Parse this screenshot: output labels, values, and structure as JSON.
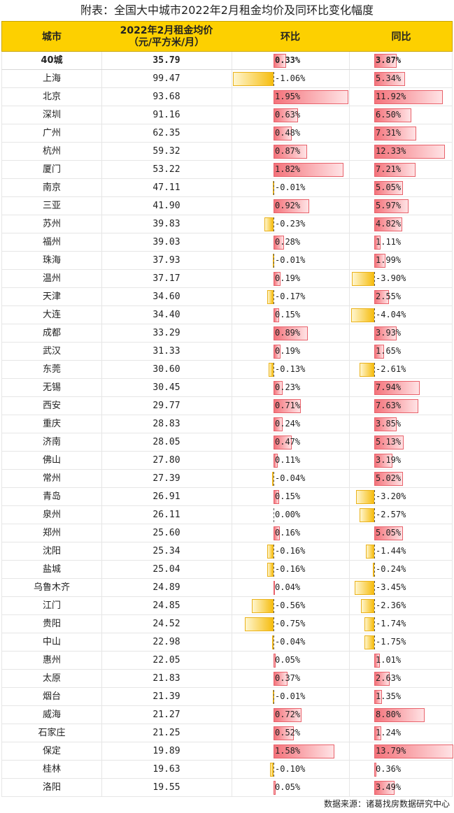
{
  "title": "附表：全国大中城市2022年2月租金均价及同环比变化幅度",
  "headers": {
    "city": "城市",
    "rent_line1": "2022年2月租金均价",
    "rent_line2": "（元/平方米/月）",
    "mom": "环比",
    "yoy": "同比"
  },
  "source": "数据来源：诸葛找房数据研究中心",
  "colors": {
    "header_bg": "#fdd000",
    "positive_bar": "#f4737b",
    "negative_bar": "#f6bd10"
  },
  "chart_data": {
    "type": "table",
    "columns": [
      "城市",
      "2022年2月租金均价（元/平方米/月）",
      "环比",
      "同比"
    ],
    "rows": [
      {
        "city": "40城",
        "rent": "35.79",
        "mom": "0.33%",
        "yoy": "3.87%"
      },
      {
        "city": "上海",
        "rent": "99.47",
        "mom": "-1.06%",
        "yoy": "5.34%"
      },
      {
        "city": "北京",
        "rent": "93.68",
        "mom": "1.95%",
        "yoy": "11.92%"
      },
      {
        "city": "深圳",
        "rent": "91.16",
        "mom": "0.63%",
        "yoy": "6.50%"
      },
      {
        "city": "广州",
        "rent": "62.35",
        "mom": "0.48%",
        "yoy": "7.31%"
      },
      {
        "city": "杭州",
        "rent": "59.32",
        "mom": "0.87%",
        "yoy": "12.33%"
      },
      {
        "city": "厦门",
        "rent": "53.22",
        "mom": "1.82%",
        "yoy": "7.21%"
      },
      {
        "city": "南京",
        "rent": "47.11",
        "mom": "-0.01%",
        "yoy": "5.05%"
      },
      {
        "city": "三亚",
        "rent": "41.90",
        "mom": "0.92%",
        "yoy": "5.97%"
      },
      {
        "city": "苏州",
        "rent": "39.83",
        "mom": "-0.23%",
        "yoy": "4.82%"
      },
      {
        "city": "福州",
        "rent": "39.03",
        "mom": "0.28%",
        "yoy": "1.11%"
      },
      {
        "city": "珠海",
        "rent": "37.93",
        "mom": "-0.01%",
        "yoy": "1.99%"
      },
      {
        "city": "温州",
        "rent": "37.17",
        "mom": "0.19%",
        "yoy": "-3.90%"
      },
      {
        "city": "天津",
        "rent": "34.60",
        "mom": "-0.17%",
        "yoy": "2.55%"
      },
      {
        "city": "大连",
        "rent": "34.40",
        "mom": "0.15%",
        "yoy": "-4.04%"
      },
      {
        "city": "成都",
        "rent": "33.29",
        "mom": "0.89%",
        "yoy": "3.93%"
      },
      {
        "city": "武汉",
        "rent": "31.33",
        "mom": "0.19%",
        "yoy": "1.65%"
      },
      {
        "city": "东莞",
        "rent": "30.60",
        "mom": "-0.13%",
        "yoy": "-2.61%"
      },
      {
        "city": "无锡",
        "rent": "30.45",
        "mom": "0.23%",
        "yoy": "7.94%"
      },
      {
        "city": "西安",
        "rent": "29.77",
        "mom": "0.71%",
        "yoy": "7.63%"
      },
      {
        "city": "重庆",
        "rent": "28.83",
        "mom": "0.24%",
        "yoy": "3.85%"
      },
      {
        "city": "济南",
        "rent": "28.05",
        "mom": "0.47%",
        "yoy": "5.13%"
      },
      {
        "city": "佛山",
        "rent": "27.80",
        "mom": "0.11%",
        "yoy": "3.19%"
      },
      {
        "city": "常州",
        "rent": "27.39",
        "mom": "-0.04%",
        "yoy": "5.02%"
      },
      {
        "city": "青岛",
        "rent": "26.91",
        "mom": "0.15%",
        "yoy": "-3.20%"
      },
      {
        "city": "泉州",
        "rent": "26.11",
        "mom": "0.00%",
        "yoy": "-2.57%"
      },
      {
        "city": "郑州",
        "rent": "25.60",
        "mom": "0.16%",
        "yoy": "5.05%"
      },
      {
        "city": "沈阳",
        "rent": "25.34",
        "mom": "-0.16%",
        "yoy": "-1.44%"
      },
      {
        "city": "盐城",
        "rent": "25.04",
        "mom": "-0.16%",
        "yoy": "-0.24%"
      },
      {
        "city": "乌鲁木齐",
        "rent": "24.89",
        "mom": "0.04%",
        "yoy": "-3.45%"
      },
      {
        "city": "江门",
        "rent": "24.85",
        "mom": "-0.56%",
        "yoy": "-2.36%"
      },
      {
        "city": "贵阳",
        "rent": "24.52",
        "mom": "-0.75%",
        "yoy": "-1.74%"
      },
      {
        "city": "中山",
        "rent": "22.98",
        "mom": "-0.04%",
        "yoy": "-1.75%"
      },
      {
        "city": "惠州",
        "rent": "22.05",
        "mom": "0.05%",
        "yoy": "1.01%"
      },
      {
        "city": "太原",
        "rent": "21.83",
        "mom": "0.37%",
        "yoy": "2.63%"
      },
      {
        "city": "烟台",
        "rent": "21.39",
        "mom": "-0.01%",
        "yoy": "1.35%"
      },
      {
        "city": "威海",
        "rent": "21.27",
        "mom": "0.72%",
        "yoy": "8.80%"
      },
      {
        "city": "石家庄",
        "rent": "21.25",
        "mom": "0.52%",
        "yoy": "1.24%"
      },
      {
        "city": "保定",
        "rent": "19.89",
        "mom": "1.58%",
        "yoy": "13.79%"
      },
      {
        "city": "桂林",
        "rent": "19.63",
        "mom": "-0.10%",
        "yoy": "0.36%"
      },
      {
        "city": "洛阳",
        "rent": "19.55",
        "mom": "0.05%",
        "yoy": "3.49%"
      }
    ]
  }
}
